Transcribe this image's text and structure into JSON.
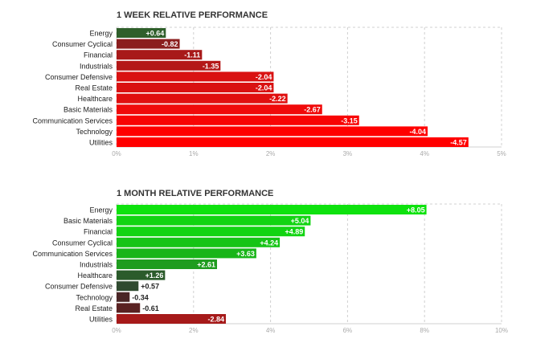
{
  "chart_data": [
    {
      "type": "bar",
      "orientation": "horizontal",
      "title": "1 WEEK RELATIVE PERFORMANCE",
      "categories": [
        "Energy",
        "Consumer Cyclical",
        "Financial",
        "Industrials",
        "Consumer Defensive",
        "Real Estate",
        "Healthcare",
        "Basic Materials",
        "Communication Services",
        "Technology",
        "Utilities"
      ],
      "values": [
        0.64,
        -0.82,
        -1.11,
        -1.35,
        -2.04,
        -2.04,
        -2.22,
        -2.67,
        -3.15,
        -4.04,
        -4.57
      ],
      "value_labels": [
        "+0.64",
        "-0.82",
        "-1.11",
        "-1.35",
        "-2.04",
        "-2.04",
        "-2.22",
        "-2.67",
        "-3.15",
        "-4.04",
        "-4.57"
      ],
      "colors": [
        "#2f5f2b",
        "#8b1e1e",
        "#a81a1a",
        "#b41818",
        "#d91212",
        "#d91212",
        "#e00f0f",
        "#f00a0a",
        "#f80505",
        "#ff0000",
        "#ff0000"
      ],
      "xlim": [
        0,
        5
      ],
      "ticks": [
        "0%",
        "1%",
        "2%",
        "3%",
        "4%",
        "5%"
      ],
      "grid": true
    },
    {
      "type": "bar",
      "orientation": "horizontal",
      "title": "1 MONTH RELATIVE PERFORMANCE",
      "categories": [
        "Energy",
        "Basic Materials",
        "Financial",
        "Consumer Cyclical",
        "Communication Services",
        "Industrials",
        "Healthcare",
        "Consumer Defensive",
        "Technology",
        "Real Estate",
        "Utilities"
      ],
      "values": [
        8.05,
        5.04,
        4.89,
        4.24,
        3.63,
        2.61,
        1.26,
        0.57,
        -0.34,
        -0.61,
        -2.84
      ],
      "value_labels": [
        "+8.05",
        "+5.04",
        "+4.89",
        "+4.24",
        "+3.63",
        "+2.61",
        "+1.26",
        "+0.57",
        "-0.34",
        "-0.61",
        "-2.84"
      ],
      "colors": [
        "#0ee20e",
        "#12d412",
        "#12d412",
        "#16c416",
        "#19b519",
        "#1f9c1f",
        "#2b5b2b",
        "#2f4a2f",
        "#4a2626",
        "#5a2222",
        "#a61a1a"
      ],
      "xlim": [
        0,
        10
      ],
      "ticks": [
        "0%",
        "2%",
        "4%",
        "6%",
        "8%",
        "10%"
      ],
      "grid": true
    }
  ]
}
